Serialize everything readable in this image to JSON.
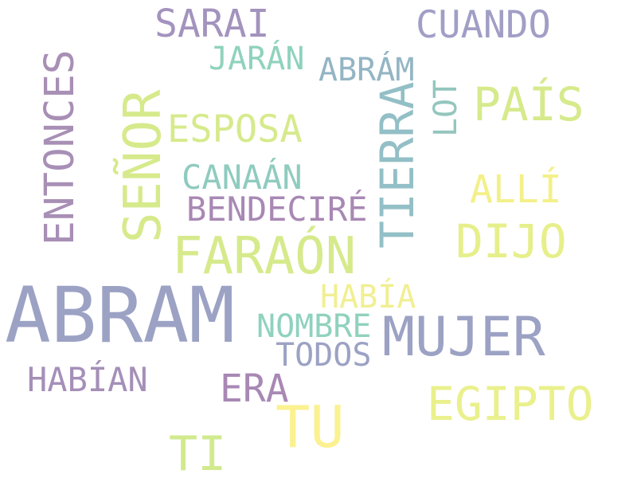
{
  "words": [
    {
      "key": "abram",
      "text": "ABRAM",
      "color": "#9ca2c4"
    },
    {
      "key": "mujer",
      "text": "MUJER",
      "color": "#9ca2c4"
    },
    {
      "key": "tu",
      "text": "TU",
      "color": "#fbf190"
    },
    {
      "key": "faraon",
      "text": "FARAÓN",
      "color": "#d6ea8c"
    },
    {
      "key": "senor",
      "text": "SEÑOR",
      "color": "#d6ea8c"
    },
    {
      "key": "tierra",
      "text": "TIERRA",
      "color": "#93bfc6"
    },
    {
      "key": "entonces",
      "text": "ENTONCES",
      "color": "#a88fb5"
    },
    {
      "key": "egipto",
      "text": "EGIPTO",
      "color": "#eaf08c"
    },
    {
      "key": "dijo",
      "text": "DIJO",
      "color": "#e6ef8a"
    },
    {
      "key": "ti",
      "text": "TI",
      "color": "#d2ea8e"
    },
    {
      "key": "sarai",
      "text": "SARAI",
      "color": "#a393be"
    },
    {
      "key": "cuando",
      "text": "CUANDO",
      "color": "#a19ec6"
    },
    {
      "key": "pais",
      "text": "PAÍS",
      "color": "#d6ea8c"
    },
    {
      "key": "esposa",
      "text": "ESPOSA",
      "color": "#d6ea8c"
    },
    {
      "key": "alli",
      "text": "ALLÍ",
      "color": "#f3f08a"
    },
    {
      "key": "bendecire",
      "text": "BENDECIRÉ",
      "color": "#a888b4"
    },
    {
      "key": "canaan",
      "text": "CANAÁN",
      "color": "#8fcbbf"
    },
    {
      "key": "era",
      "text": "ERA",
      "color": "#a888b4"
    },
    {
      "key": "habian",
      "text": "HABÍAN",
      "color": "#a58fb8"
    },
    {
      "key": "nombre",
      "text": "NOMBRE",
      "color": "#8fd2bd"
    },
    {
      "key": "habia",
      "text": "HABÍA",
      "color": "#f1ef92"
    },
    {
      "key": "todos",
      "text": "TODOS",
      "color": "#9ca2c4"
    },
    {
      "key": "jaran",
      "text": "JARÁN",
      "color": "#8fd2bd"
    },
    {
      "key": "abram2",
      "text": "ABRÁM",
      "color": "#93b5c4"
    },
    {
      "key": "lot",
      "text": "LOT",
      "color": "#93c6be"
    }
  ]
}
